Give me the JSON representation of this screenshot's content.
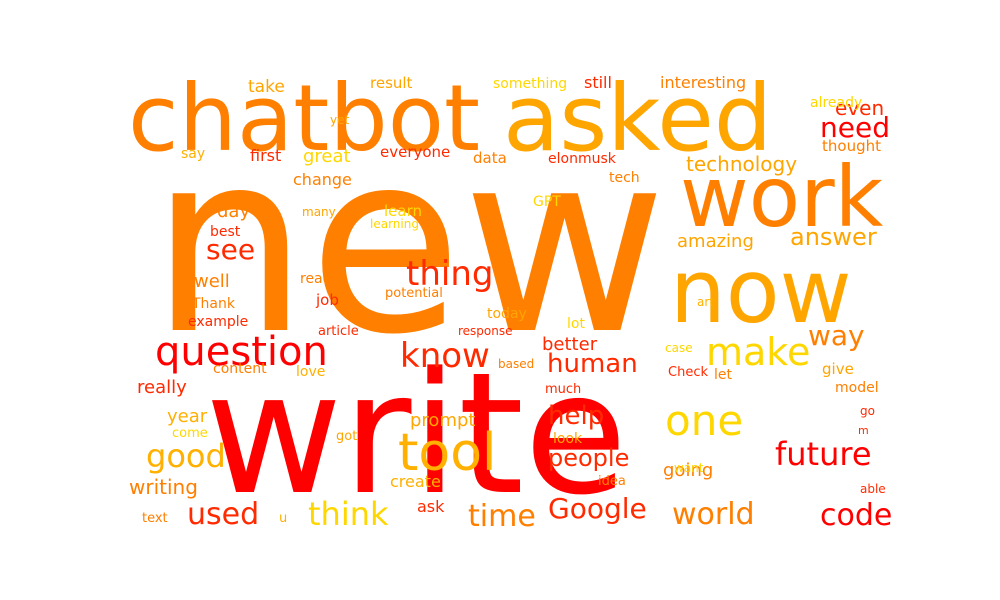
{
  "words": [
    {
      "text": "new",
      "color": "#ff7f00"
    },
    {
      "text": "write",
      "color": "#ff0000"
    },
    {
      "text": "chatbot",
      "color": "#ff7f00"
    },
    {
      "text": "asked",
      "color": "#ffa500"
    },
    {
      "text": "work",
      "color": "#ff7f00"
    },
    {
      "text": "now",
      "color": "#ffa500"
    },
    {
      "text": "tool",
      "color": "#ffb000"
    },
    {
      "text": "question",
      "color": "#ff0000"
    },
    {
      "text": "make",
      "color": "#ffd700"
    },
    {
      "text": "know",
      "color": "#ff2a00"
    },
    {
      "text": "thing",
      "color": "#ff2a00"
    },
    {
      "text": "one",
      "color": "#ffd700"
    },
    {
      "text": "future",
      "color": "#ff0000"
    },
    {
      "text": "think",
      "color": "#ffd700"
    },
    {
      "text": "good",
      "color": "#ffb000"
    },
    {
      "text": "time",
      "color": "#ff7f00"
    },
    {
      "text": "Google",
      "color": "#ff2a00"
    },
    {
      "text": "world",
      "color": "#ff7f00"
    },
    {
      "text": "code",
      "color": "#ff0000"
    },
    {
      "text": "used",
      "color": "#ff2a00"
    },
    {
      "text": "human",
      "color": "#ff2a00"
    },
    {
      "text": "help",
      "color": "#ff2a00"
    },
    {
      "text": "people",
      "color": "#ff2a00"
    },
    {
      "text": "way",
      "color": "#ff7f00"
    },
    {
      "text": "see",
      "color": "#ff2a00"
    },
    {
      "text": "need",
      "color": "#ff0000"
    },
    {
      "text": "answer",
      "color": "#ffa500"
    },
    {
      "text": "technology",
      "color": "#ffa500"
    },
    {
      "text": "writing",
      "color": "#ff7f00"
    },
    {
      "text": "even",
      "color": "#ff2a00"
    },
    {
      "text": "great",
      "color": "#ffd700"
    },
    {
      "text": "amazing",
      "color": "#ffa500"
    },
    {
      "text": "going",
      "color": "#ff7f00"
    },
    {
      "text": "better",
      "color": "#ff2a00"
    },
    {
      "text": "prompt",
      "color": "#ffa500"
    },
    {
      "text": "year",
      "color": "#ffb000"
    },
    {
      "text": "really",
      "color": "#ff2a00"
    },
    {
      "text": "day",
      "color": "#ff7f00"
    },
    {
      "text": "well",
      "color": "#ff7f00"
    },
    {
      "text": "create",
      "color": "#ffb000"
    },
    {
      "text": "ask",
      "color": "#ff2a00"
    },
    {
      "text": "take",
      "color": "#ffa500"
    },
    {
      "text": "result",
      "color": "#ffa500"
    },
    {
      "text": "something",
      "color": "#ffd700"
    },
    {
      "text": "still",
      "color": "#ff2a00"
    },
    {
      "text": "interesting",
      "color": "#ff7f00"
    },
    {
      "text": "already",
      "color": "#ffd700"
    },
    {
      "text": "thought",
      "color": "#ff7f00"
    },
    {
      "text": "say",
      "color": "#ffb000"
    },
    {
      "text": "yet",
      "color": "#ffa500"
    },
    {
      "text": "first",
      "color": "#ff2a00"
    },
    {
      "text": "everyone",
      "color": "#ff2a00"
    },
    {
      "text": "data",
      "color": "#ff7f00"
    },
    {
      "text": "elonmusk",
      "color": "#ff2a00"
    },
    {
      "text": "tech",
      "color": "#ff7f00"
    },
    {
      "text": "change",
      "color": "#ff7f00"
    },
    {
      "text": "GPT",
      "color": "#ffd700"
    },
    {
      "text": "many",
      "color": "#ffa500"
    },
    {
      "text": "learn",
      "color": "#ffd700"
    },
    {
      "text": "learning",
      "color": "#ffd700"
    },
    {
      "text": "best",
      "color": "#ff2a00"
    },
    {
      "text": "read",
      "color": "#ff7f00"
    },
    {
      "text": "potential",
      "color": "#ff7f00"
    },
    {
      "text": "job",
      "color": "#ff2a00"
    },
    {
      "text": "today",
      "color": "#ffa500"
    },
    {
      "text": "lot",
      "color": "#ffd700"
    },
    {
      "text": "art",
      "color": "#ffb000"
    },
    {
      "text": "Thank",
      "color": "#ff7f00"
    },
    {
      "text": "example",
      "color": "#ff2a00"
    },
    {
      "text": "article",
      "color": "#ff2a00"
    },
    {
      "text": "response",
      "color": "#ff2a00"
    },
    {
      "text": "case",
      "color": "#ffd700"
    },
    {
      "text": "content",
      "color": "#ff7f00"
    },
    {
      "text": "love",
      "color": "#ffb000"
    },
    {
      "text": "based",
      "color": "#ff7f00"
    },
    {
      "text": "much",
      "color": "#ff2a00"
    },
    {
      "text": "Check",
      "color": "#ff2a00"
    },
    {
      "text": "let",
      "color": "#ff7f00"
    },
    {
      "text": "give",
      "color": "#ffa500"
    },
    {
      "text": "model",
      "color": "#ff7f00"
    },
    {
      "text": "come",
      "color": "#ffd700"
    },
    {
      "text": "got",
      "color": "#ffa500"
    },
    {
      "text": "look",
      "color": "#ffa500"
    },
    {
      "text": "go",
      "color": "#ff2a00"
    },
    {
      "text": "m",
      "color": "#ff2a00"
    },
    {
      "text": "want",
      "color": "#ffd700"
    },
    {
      "text": "idea",
      "color": "#ff7f00"
    },
    {
      "text": "able",
      "color": "#ff2a00"
    },
    {
      "text": "text",
      "color": "#ff7f00"
    },
    {
      "text": "u",
      "color": "#ffb000"
    }
  ]
}
